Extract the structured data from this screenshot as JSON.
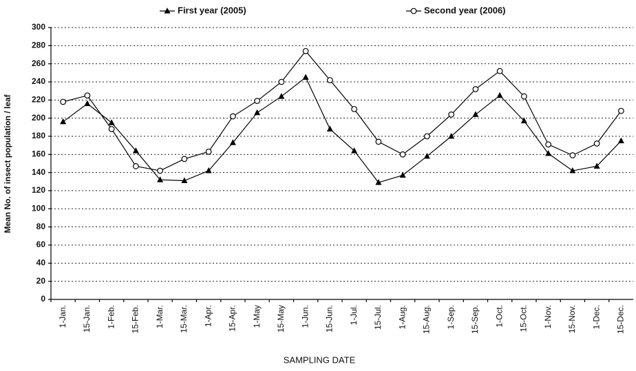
{
  "chart_data": {
    "type": "line",
    "x_label": "SAMPLING DATE",
    "y_label": "Mean No. of insect population / leaf",
    "categories": [
      "1-Jan.",
      "15-Jan.",
      "1-Feb.",
      "15-Feb.",
      "1-Mar.",
      "15-Mar.",
      "1-Apr.",
      "15-Apr.",
      "1-May",
      "15-May",
      "1-Jun.",
      "15-Jun.",
      "1-Jul.",
      "15-Jul.",
      "1-Aug.",
      "15-Aug.",
      "1-Sep.",
      "15-Sep.",
      "1-Oct.",
      "15-Oct.",
      "1-Nov.",
      "15-Nov.",
      "1-Dec.",
      "15-Dec."
    ],
    "series": [
      {
        "name": "First year (2005)",
        "color": "#000000",
        "marker": "triangle",
        "values": [
          196,
          216,
          195,
          164,
          132,
          131,
          142,
          173,
          206,
          224,
          245,
          188,
          164,
          129,
          137,
          158,
          180,
          204,
          225,
          197,
          161,
          142,
          147,
          175
        ]
      },
      {
        "name": "Second year (2006)",
        "color": "#000000",
        "marker": "circle",
        "values": [
          218,
          225,
          188,
          147,
          142,
          155,
          163,
          202,
          219,
          240,
          274,
          242,
          210,
          174,
          160,
          180,
          204,
          232,
          252,
          224,
          171,
          159,
          172,
          208
        ]
      }
    ],
    "ylim": [
      0,
      300
    ],
    "yticks": [
      0,
      20,
      40,
      60,
      80,
      100,
      120,
      140,
      160,
      180,
      200,
      220,
      240,
      260,
      280,
      300
    ],
    "grid": true
  }
}
